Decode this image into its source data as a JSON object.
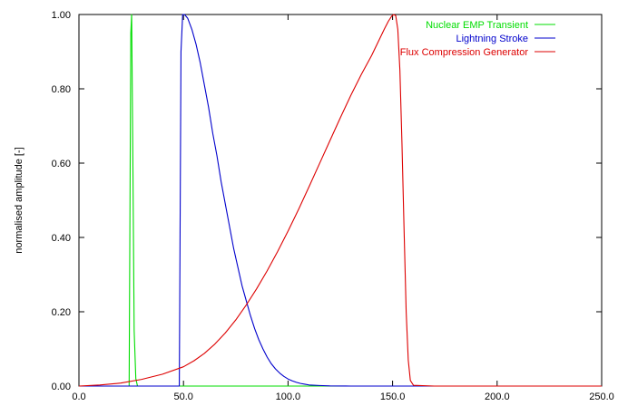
{
  "chart_data": {
    "type": "line",
    "title": "",
    "xlabel": "",
    "ylabel": "normalised amplitude [-]",
    "xlim": [
      0,
      250
    ],
    "ylim": [
      0,
      1
    ],
    "x_ticks": [
      0,
      50,
      100,
      150,
      200,
      250
    ],
    "x_tick_labels": [
      "0.0",
      "50.0",
      "100.0",
      "150.0",
      "200.0",
      "250.0"
    ],
    "y_ticks": [
      0,
      0.2,
      0.4,
      0.6,
      0.8,
      1.0
    ],
    "y_tick_labels": [
      "0.00",
      "0.20",
      "0.40",
      "0.60",
      "0.80",
      "1.00"
    ],
    "grid": false,
    "legend_position": "top-right",
    "series": [
      {
        "name": "Nuclear EMP Transient",
        "color": "#00dd00",
        "x": [
          0,
          24,
          24.8,
          25.2,
          25.8,
          26.4,
          27.2,
          28,
          30,
          40,
          60,
          100,
          150,
          250
        ],
        "y": [
          0,
          0,
          0.95,
          1.0,
          0.6,
          0.15,
          0.02,
          0,
          0,
          0,
          0,
          0,
          0,
          0
        ]
      },
      {
        "name": "Lightning Stroke",
        "color": "#0000cc",
        "x": [
          0,
          48,
          48.8,
          49.6,
          50.5,
          52,
          54,
          56,
          58,
          60,
          62,
          64,
          66,
          68,
          70,
          72,
          74,
          76,
          78,
          80,
          82,
          84,
          86,
          88,
          90,
          92,
          94,
          96,
          98,
          100,
          102,
          104,
          106,
          108,
          110,
          115,
          120,
          130,
          150,
          250
        ],
        "y": [
          0,
          0,
          0.9,
          1.0,
          1.0,
          0.99,
          0.96,
          0.92,
          0.87,
          0.81,
          0.75,
          0.68,
          0.62,
          0.55,
          0.49,
          0.43,
          0.37,
          0.32,
          0.27,
          0.23,
          0.19,
          0.155,
          0.125,
          0.1,
          0.078,
          0.06,
          0.046,
          0.035,
          0.026,
          0.019,
          0.014,
          0.01,
          0.007,
          0.005,
          0.003,
          0.0015,
          0.0005,
          0,
          0,
          0
        ]
      },
      {
        "name": "Flux Compression Generator",
        "color": "#dd0000",
        "x": [
          0,
          10,
          20,
          30,
          40,
          50,
          55,
          60,
          65,
          70,
          75,
          80,
          85,
          90,
          95,
          100,
          105,
          110,
          115,
          120,
          125,
          130,
          135,
          140,
          143,
          146,
          148,
          149.5,
          150.5,
          151.5,
          152.5,
          153.5,
          154.5,
          155.5,
          156.5,
          157.5,
          158.5,
          160,
          170,
          250
        ],
        "y": [
          0,
          0.003,
          0.008,
          0.018,
          0.032,
          0.052,
          0.068,
          0.088,
          0.113,
          0.143,
          0.178,
          0.218,
          0.262,
          0.31,
          0.362,
          0.417,
          0.475,
          0.536,
          0.598,
          0.66,
          0.722,
          0.782,
          0.838,
          0.89,
          0.925,
          0.96,
          0.982,
          0.995,
          1.0,
          0.997,
          0.96,
          0.85,
          0.65,
          0.42,
          0.2,
          0.07,
          0.015,
          0.002,
          0,
          0
        ]
      }
    ]
  }
}
